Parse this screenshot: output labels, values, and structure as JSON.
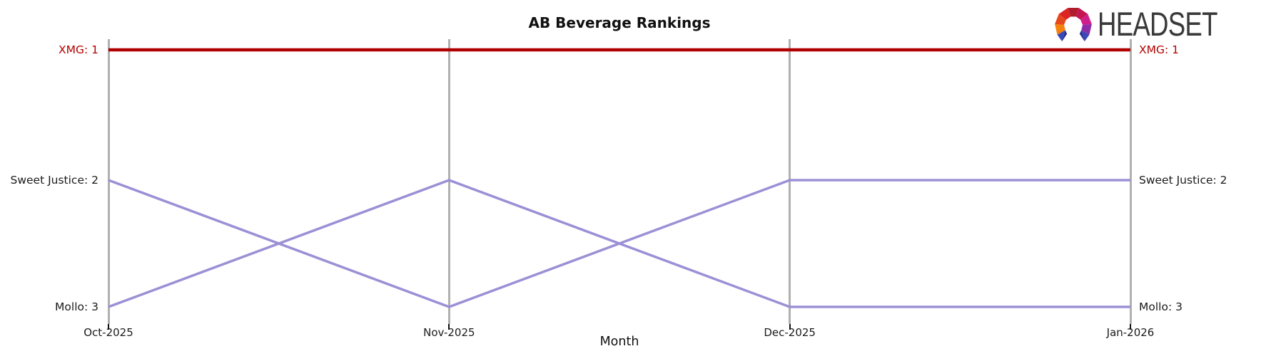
{
  "header": {
    "logo_text": "HEADSET",
    "logo_icon": "faceted-headset-arch",
    "logo_text_color": "#3a3a3a"
  },
  "chart_data": {
    "type": "line",
    "subtype": "bump-ranking-chart",
    "title": "AB Beverage Rankings",
    "xlabel": "Month",
    "ylabel": "",
    "categories": [
      "Oct-2025",
      "Nov-2025",
      "Dec-2025",
      "Jan-2026"
    ],
    "series": [
      {
        "name": "XMG",
        "ranks": [
          1,
          1,
          1,
          1
        ],
        "color": "#b00000",
        "stroke_width": 4.5
      },
      {
        "name": "Sweet Justice",
        "ranks": [
          2,
          3,
          2,
          2
        ],
        "color": "#9b90d6",
        "stroke_width": 3.5
      },
      {
        "name": "Mollo",
        "ranks": [
          3,
          2,
          3,
          3
        ],
        "color": "#9b90d6",
        "stroke_width": 3.5
      }
    ],
    "left_labels": [
      {
        "text": "XMG: 1",
        "rank": 1,
        "color": "#b40000"
      },
      {
        "text": "Sweet Justice: 2",
        "rank": 2,
        "color": "#1a1a1a"
      },
      {
        "text": "Mollo: 3",
        "rank": 3,
        "color": "#1a1a1a"
      }
    ],
    "right_labels": [
      {
        "text": "XMG: 1",
        "rank": 1,
        "color": "#b40000"
      },
      {
        "text": "Sweet Justice: 2",
        "rank": 2,
        "color": "#1a1a1a"
      },
      {
        "text": "Mollo: 3",
        "rank": 3,
        "color": "#1a1a1a"
      }
    ],
    "ylim": [
      1,
      3
    ],
    "y_inverted": true,
    "grid": "vertical-axis-lines-only",
    "axis_line_color": "#b0b0b0",
    "legend": "none-inline-labels"
  }
}
